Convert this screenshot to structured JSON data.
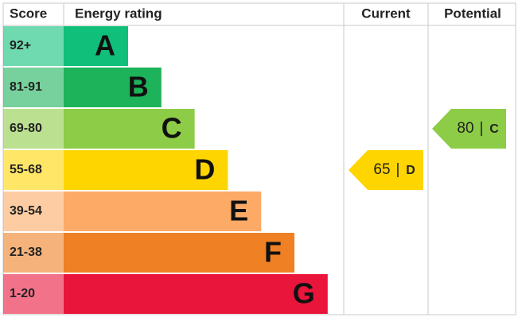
{
  "header": {
    "score": "Score",
    "rating": "Energy rating",
    "current": "Current",
    "potential": "Potential"
  },
  "bands": [
    {
      "score": "92+",
      "letter": "A",
      "color": "#0fbf7a"
    },
    {
      "score": "81-91",
      "letter": "B",
      "color": "#1db35a"
    },
    {
      "score": "69-80",
      "letter": "C",
      "color": "#8dcc46"
    },
    {
      "score": "55-68",
      "letter": "D",
      "color": "#ffd500"
    },
    {
      "score": "39-54",
      "letter": "E",
      "color": "#fcaa65"
    },
    {
      "score": "21-38",
      "letter": "F",
      "color": "#ef8023"
    },
    {
      "score": "1-20",
      "letter": "G",
      "color": "#e9153b"
    }
  ],
  "current": {
    "value": 65,
    "separator": "|",
    "letter": "D"
  },
  "potential": {
    "value": 80,
    "separator": "|",
    "letter": "C"
  }
}
